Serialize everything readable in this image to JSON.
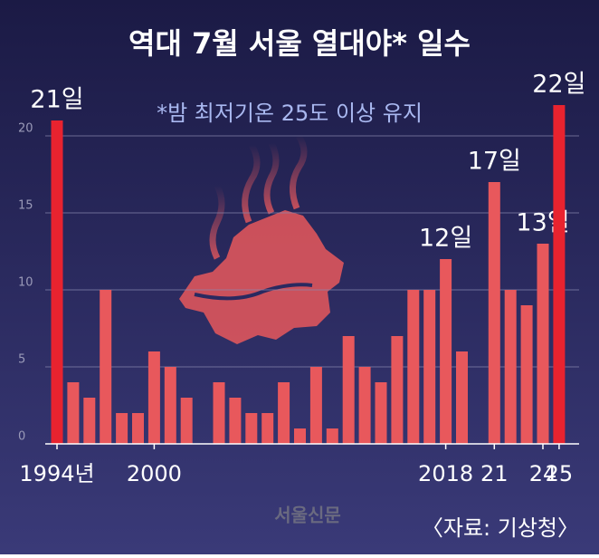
{
  "chart_data": {
    "type": "bar",
    "title": "역대 7월 서울 열대야* 일수",
    "subtitle": "*밤 최저기온 25도 이상 유지",
    "source": "〈자료: 기상청〉",
    "watermark": "서울신문",
    "categories": [
      "1994년",
      null,
      null,
      null,
      null,
      null,
      "2000",
      null,
      null,
      null,
      null,
      null,
      null,
      null,
      null,
      null,
      null,
      null,
      null,
      null,
      null,
      null,
      null,
      null,
      "2018",
      null,
      null,
      "21",
      null,
      null,
      "24",
      "25"
    ],
    "values": [
      21,
      4,
      3,
      10,
      2,
      2,
      6,
      5,
      3,
      0,
      4,
      3,
      2,
      2,
      4,
      1,
      5,
      1,
      7,
      5,
      4,
      7,
      10,
      10,
      12,
      6,
      0,
      17,
      10,
      9,
      13,
      22
    ],
    "value_labels": [
      "21일",
      null,
      null,
      null,
      null,
      null,
      null,
      null,
      null,
      null,
      null,
      null,
      null,
      null,
      null,
      null,
      null,
      null,
      null,
      null,
      null,
      null,
      null,
      null,
      "12일",
      null,
      null,
      "17일",
      null,
      null,
      "13일",
      "22일"
    ],
    "colors": [
      "#e8232f",
      "#e8585c",
      "#e8585c",
      "#e8585c",
      "#e8585c",
      "#e8585c",
      "#e8585c",
      "#e8585c",
      "#e8585c",
      "#e8585c",
      "#e8585c",
      "#e8585c",
      "#e8585c",
      "#e8585c",
      "#e8585c",
      "#e8585c",
      "#e8585c",
      "#e8585c",
      "#e8585c",
      "#e8585c",
      "#e8585c",
      "#e8585c",
      "#e8585c",
      "#e8585c",
      "#e8585c",
      "#e8585c",
      "#e8585c",
      "#e8585c",
      "#e8585c",
      "#e8585c",
      "#e8585c",
      "#e8232f"
    ],
    "ylim": [
      0,
      22
    ],
    "yticks": [
      0,
      5,
      10,
      15,
      20
    ],
    "grid": true
  }
}
